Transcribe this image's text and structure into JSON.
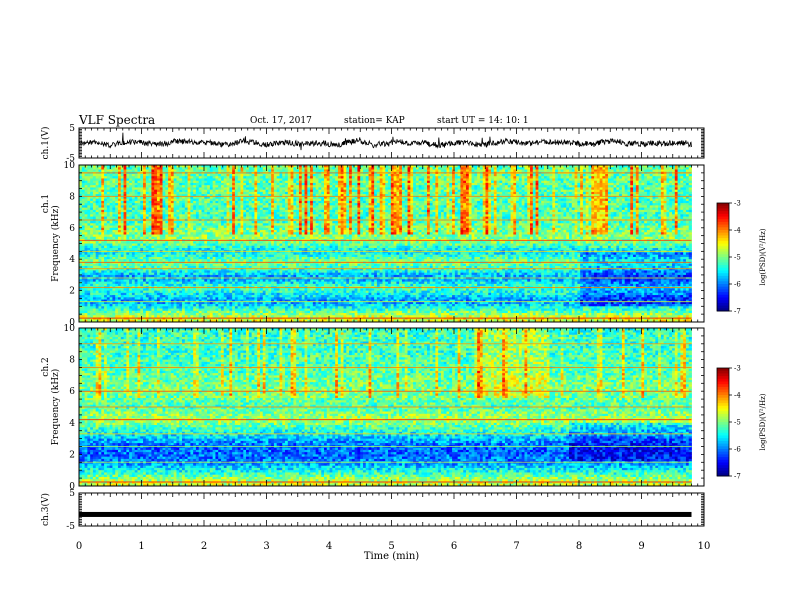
{
  "header": {
    "title": "VLF Spectra",
    "date": "Oct. 17, 2017",
    "station": "station= KAP",
    "start": "start  UT  =    14: 10: 1"
  },
  "chart_data": [
    {
      "type": "line",
      "name": "ch1-waveform",
      "ylabel": "ch.1(V)",
      "ylim": [
        -5,
        5
      ],
      "yticks": [
        -5,
        5
      ],
      "xlim": [
        0,
        10
      ],
      "baseline_approx": 0,
      "amplitude_approx": 1.5
    },
    {
      "type": "heatmap",
      "name": "ch1-spectrogram",
      "ylabel_top": "ch.1",
      "ylabel": "Frequency  (kHz)",
      "ylim": [
        0,
        10
      ],
      "yticks": [
        0,
        2,
        4,
        6,
        8,
        10
      ],
      "xlim": [
        0,
        10
      ],
      "data_end_min": 9.8,
      "colorbar": {
        "label": "log(PSD)(V²/Hz)",
        "range": [
          -7,
          -3
        ],
        "ticks": [
          -7,
          -6,
          -5,
          -4,
          -3
        ]
      },
      "band_levels_kHz": [
        {
          "f": 0.25,
          "level": -4.6
        },
        {
          "f": 1.3,
          "level": -5.9
        },
        {
          "f": 2.2,
          "level": -5.2
        },
        {
          "f": 2.8,
          "level": -5.9
        },
        {
          "f": 3.4,
          "level": -5.3
        },
        {
          "f": 3.8,
          "level": -5.0
        },
        {
          "f": 4.5,
          "level": -5.6
        },
        {
          "f": 5.2,
          "level": -4.9
        },
        {
          "f": 6.5,
          "level": -5.2
        },
        {
          "f": 8.0,
          "level": -5.2
        },
        {
          "f": 9.5,
          "level": -5.1
        }
      ]
    },
    {
      "type": "heatmap",
      "name": "ch2-spectrogram",
      "ylabel_top": "ch.2",
      "ylabel": "Frequency  (kHz)",
      "ylim": [
        0,
        10
      ],
      "yticks": [
        0,
        2,
        4,
        6,
        8,
        10
      ],
      "xlim": [
        0,
        10
      ],
      "data_end_min": 9.8,
      "colorbar": {
        "label": "log(PSD)(V²/Hz)",
        "range": [
          -7,
          -3
        ],
        "ticks": [
          -7,
          -6,
          -5,
          -4,
          -3
        ]
      },
      "band_levels_kHz": [
        {
          "f": 0.25,
          "level": -4.7
        },
        {
          "f": 1.5,
          "level": -6.0
        },
        {
          "f": 2.5,
          "level": -6.1
        },
        {
          "f": 3.3,
          "level": -5.5
        },
        {
          "f": 4.2,
          "level": -4.8
        },
        {
          "f": 5.0,
          "level": -5.2
        },
        {
          "f": 6.0,
          "level": -5.0
        },
        {
          "f": 7.5,
          "level": -5.2
        },
        {
          "f": 9.0,
          "level": -5.3
        }
      ]
    },
    {
      "type": "line",
      "name": "ch3-waveform",
      "ylabel": "ch.3(V)",
      "ylim": [
        -5,
        5
      ],
      "yticks": [
        -5,
        5
      ],
      "xlim": [
        0,
        10
      ],
      "baseline_approx": -1.5,
      "amplitude_approx": 0.1
    }
  ],
  "xaxis": {
    "label": "Time  (min)",
    "ticks": [
      0,
      1,
      2,
      3,
      4,
      5,
      6,
      7,
      8,
      9,
      10
    ]
  }
}
